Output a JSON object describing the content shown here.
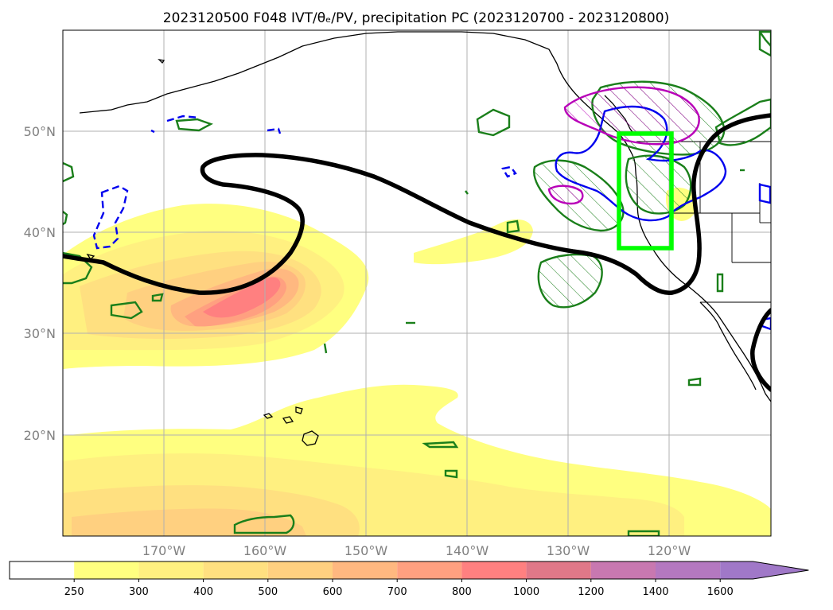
{
  "title": "2023120500 F048 IVT/θₑ/PV, precipitation PC (2023120700 - 2023120800)",
  "map": {
    "lat_labels": [
      "50°N",
      "40°N",
      "30°N",
      "20°N"
    ],
    "lon_labels": [
      "170°W",
      "160°W",
      "150°W",
      "140°W",
      "130°W",
      "120°W"
    ],
    "lon_range": [
      180,
      -110
    ],
    "lat_range": [
      10,
      60
    ],
    "highlight_box": {
      "lon": [
        -125,
        -120
      ],
      "lat": [
        38,
        50
      ],
      "color": "#00ff00"
    },
    "colors": {
      "pv_contour": "#1a7f1a",
      "theta_contour": "#0000ee",
      "precip_contour": "#b800b8",
      "jet_axis": "#000000"
    }
  },
  "colorbar": {
    "ticks": [
      "250",
      "300",
      "400",
      "500",
      "600",
      "700",
      "800",
      "1000",
      "1200",
      "1400",
      "1600"
    ],
    "colors": [
      "#ffffff",
      "#ffff80",
      "#fff080",
      "#ffe080",
      "#ffd080",
      "#ffb880",
      "#ffa080",
      "#ff8080",
      "#e07888",
      "#c878b0",
      "#b478c0",
      "#a078c8"
    ],
    "extend": "max"
  }
}
